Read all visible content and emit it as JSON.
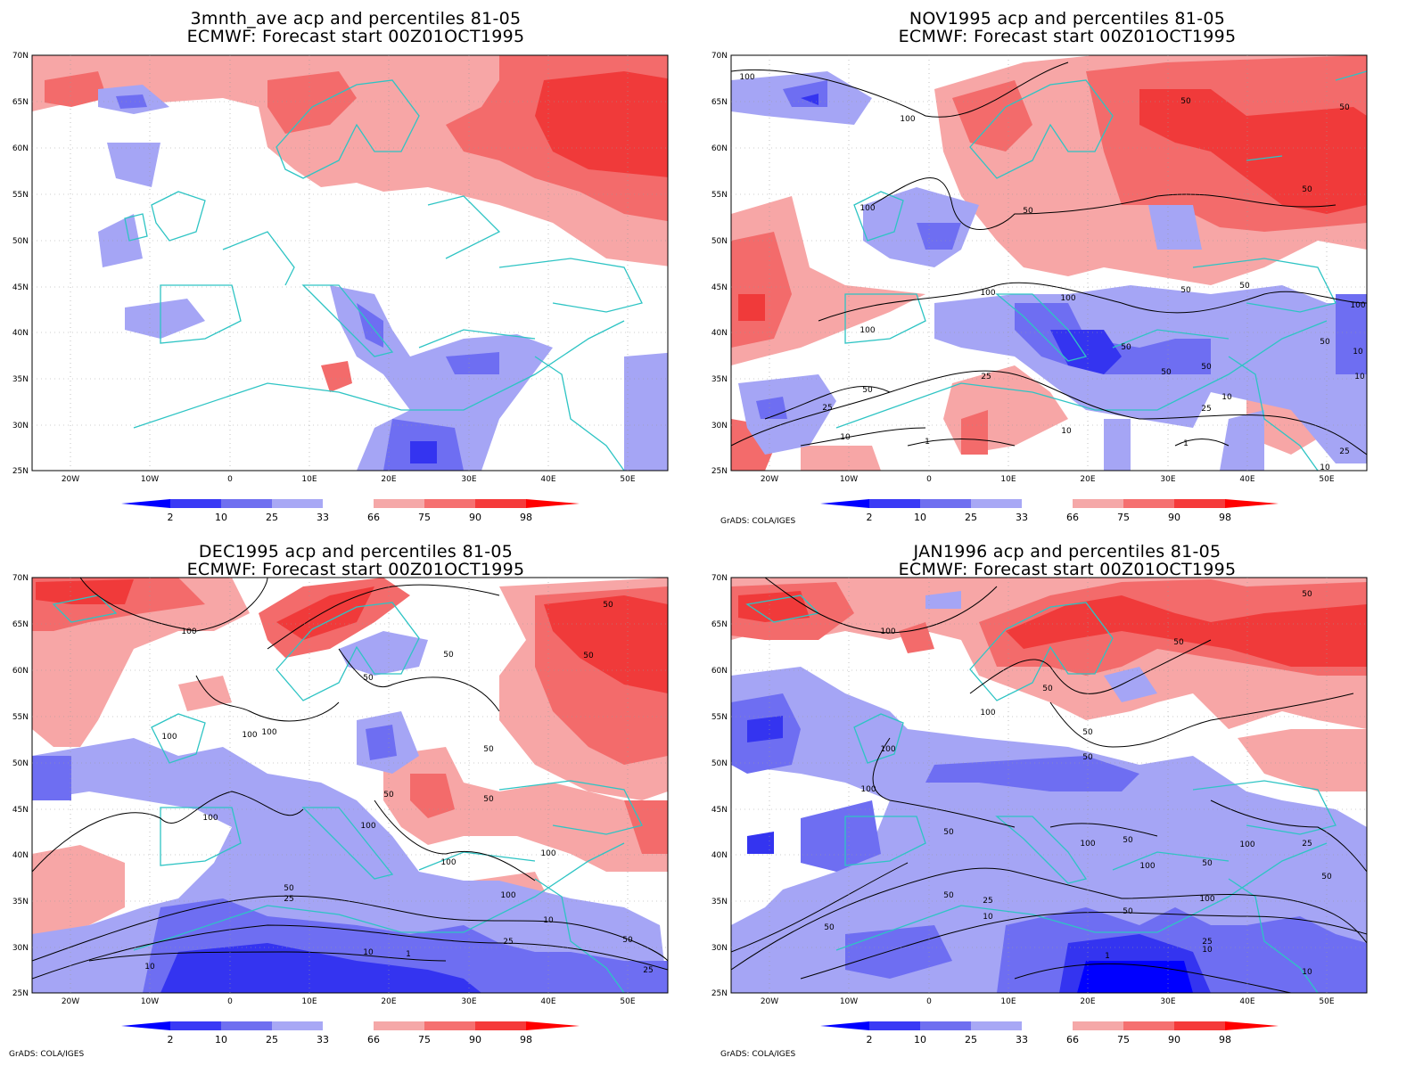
{
  "lat_labels": [
    "70N",
    "65N",
    "60N",
    "55N",
    "50N",
    "45N",
    "40N",
    "35N",
    "30N",
    "25N"
  ],
  "lon_labels": [
    "20W",
    "10W",
    "0",
    "10E",
    "20E",
    "30E",
    "40E",
    "50E"
  ],
  "colorbar": {
    "labels": [
      "2",
      "10",
      "25",
      "33",
      "66",
      "75",
      "90",
      "98"
    ],
    "colors": [
      "#0000ff",
      "#3a3af5",
      "#6f6ff0",
      "#a8a8f5",
      "#ffffff",
      "#f5a8a8",
      "#f57070",
      "#f53a3a",
      "#ff0000"
    ]
  },
  "fill_colors": {
    "blue_light": "#a5a5f5",
    "blue_mid": "#6e6ef2",
    "blue_dark": "#3434f0",
    "red_light": "#f7a6a6",
    "red_mid": "#f36b6b",
    "red_dark": "#f03a3a",
    "coast": "#2ec4c4",
    "contour": "#000000"
  },
  "credit": "GrADS: COLA/IGES",
  "panels": [
    {
      "title_line1": "3mnth_ave acp and percentiles 81-05",
      "title_line2": "ECMWF: Forecast start 00Z01OCT1995",
      "credit": "",
      "contour_labels": []
    },
    {
      "title_line1": "NOV1995 acp and percentiles 81-05",
      "title_line2": "ECMWF: Forecast start 00Z01OCT1995",
      "credit": "GrADS: COLA/IGES",
      "contour_labels": [
        "100",
        "100",
        "50",
        "50",
        "100",
        "50",
        "50",
        "100",
        "100",
        "100",
        "50",
        "50",
        "50",
        "100",
        "50",
        "50",
        "25",
        "50",
        "25",
        "10",
        "1",
        "10",
        "25",
        "1",
        "10",
        "10",
        "25",
        "10",
        "50",
        "10"
      ]
    },
    {
      "title_line1": "DEC1995 acp and percentiles 81-05",
      "title_line2": "ECMWF: Forecast start 00Z01OCT1995",
      "credit": "GrADS: COLA/IGES",
      "contour_labels": [
        "100",
        "50",
        "50",
        "50",
        "50",
        "100",
        "100",
        "100",
        "50",
        "50",
        "100",
        "100",
        "50",
        "100",
        "100",
        "50",
        "25",
        "100",
        "25",
        "10",
        "1",
        "10",
        "50",
        "10",
        "25"
      ]
    },
    {
      "title_line1": "JAN1996 acp and percentiles 81-05",
      "title_line2": "ECMWF: Forecast start 00Z01OCT1995",
      "credit": "GrADS: COLA/IGES",
      "contour_labels": [
        "100",
        "50",
        "50",
        "50",
        "100",
        "100",
        "50",
        "100",
        "50",
        "50",
        "100",
        "100",
        "50",
        "100",
        "25",
        "50",
        "50",
        "50",
        "10",
        "50",
        "25",
        "1",
        "50",
        "25",
        "10",
        "100",
        "10"
      ]
    }
  ]
}
